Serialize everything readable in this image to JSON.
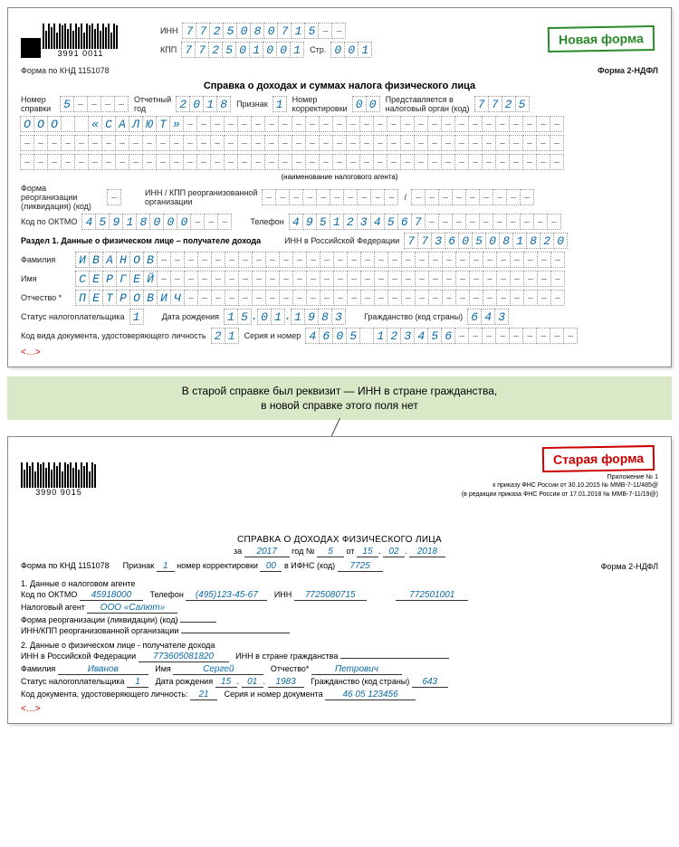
{
  "new": {
    "stamp": "Новая форма",
    "barcode": "3991  0011",
    "inn_label": "ИНН",
    "inn": "7725080715--",
    "kpp_label": "КПП",
    "kpp": "772501001",
    "str_label": "Стр.",
    "str": "001",
    "form_knd": "Форма по КНД 1151078",
    "form_right": "Форма 2-НДФЛ",
    "title": "Справка о доходах и суммах налога физического лица",
    "ref_no_label": "Номер\nсправки",
    "ref_no": "5----",
    "year_label": "Отчетный\nгод",
    "year": "2018",
    "sign_label": "Признак",
    "sign": "1",
    "corr_label": "Номер\nкорректировки",
    "corr": "00",
    "tax_org_label": "Представляется в\nналоговый орган (код)",
    "tax_org": "7725",
    "org_name": "ООО  «САЛЮТ»",
    "agent_note": "(наименование налогового агента)",
    "reorg_label": "Форма реорганизации\n(ликвидация) (код)",
    "reorg_inn_label": "ИНН / КПП реорганизованной\nорганизации",
    "oktmo_label": "Код по ОКТМО",
    "oktmo": "45918000---",
    "phone_label": "Телефон",
    "phone": "4951234567----------",
    "section1": "Раздел 1. Данные о физическом лице – получателе дохода",
    "inn_rf_label": "ИНН в Российской Федерации",
    "inn_rf": "773605081820",
    "surname_label": "Фамилия",
    "surname": "ИВАНОВ",
    "name_label": "Имя",
    "name": "СЕРГЕЙ",
    "patronymic_label": "Отчество *",
    "patronymic": "ПЕТРОВИЧ",
    "taxpayer_status_label": "Статус налогоплательщика",
    "taxpayer_status": "1",
    "dob_label": "Дата рождения",
    "dob": "15.01.1983",
    "citizenship_label": "Гражданство (код страны)",
    "citizenship": "643",
    "doc_type_label": "Код вида документа, удостоверяющего личность",
    "doc_type": "21",
    "serial_label": "Серия и номер",
    "serial": "4605 123456---------",
    "ellipsis": "<…>"
  },
  "middle_note_1": "В старой справке был реквизит — ИНН в стране гражданства,",
  "middle_note_2": "в новой справке этого поля нет",
  "old": {
    "stamp": "Старая форма",
    "barcode": "3990  9015",
    "appendix_1": "Приложение № 1",
    "appendix_2": "к приказу ФНС России от 30.10.2015 № ММВ-7-11/485@",
    "appendix_3": "(в редакции приказа ФНС России от 17.01.2018 № ММВ-7-11/19@)",
    "title": "СПРАВКА О ДОХОДАХ ФИЗИЧЕСКОГО ЛИЦА",
    "year_prefix": "за",
    "year": "2017",
    "year_suffix": "год №",
    "num": "5",
    "date_prefix": "от",
    "date_d": "15",
    "date_m": "02",
    "date_y": "2018",
    "form_knd": "Форма по КНД 1151078",
    "sign_label": "Признак",
    "sign": "1",
    "corr_label": "номер корректировки",
    "corr": "00",
    "ifns_label": "в ИФНС (код)",
    "ifns": "7725",
    "form_right": "Форма 2-НДФЛ",
    "sec1": "1. Данные о налоговом агенте",
    "oktmo_label": "Код по ОКТМО",
    "oktmo": "45918000",
    "phone_label": "Телефон",
    "phone": "(495)123-45-67",
    "inn_label": "ИНН",
    "inn": "7725080715",
    "kpp": "772501001",
    "agent_label": "Налоговый агент",
    "agent": "ООО  «Салют»",
    "reorg_label": "Форма реорганизации (ликвидации) (код)",
    "reorg_inn_label": "ИНН/КПП реорганизованной организации",
    "sec2": "2. Данные о физическом лице - получателе дохода",
    "inn_rf_label": "ИНН в Российской Федерации",
    "inn_rf": "773605081820",
    "inn_ctz_label": "ИНН в стране гражданства",
    "surname_label": "Фамилия",
    "surname": "Иванов",
    "name_label": "Имя",
    "name": "Сергей",
    "patronymic_label": "Отчество*",
    "patronymic": "Петрович",
    "status_label": "Статус налогоплательщика",
    "status": "1",
    "dob_label": "Дата рождения",
    "dob_d": "15",
    "dob_m": "01",
    "dob_y": "1983",
    "citizenship_label": "Гражданство (код страны)",
    "citizenship": "643",
    "doc_type_label": "Код документа, удостоверяющего личность:",
    "doc_type": "21",
    "serial_label": "Серия и номер документа",
    "serial": "46 05 123456",
    "ellipsis": "<…>"
  }
}
